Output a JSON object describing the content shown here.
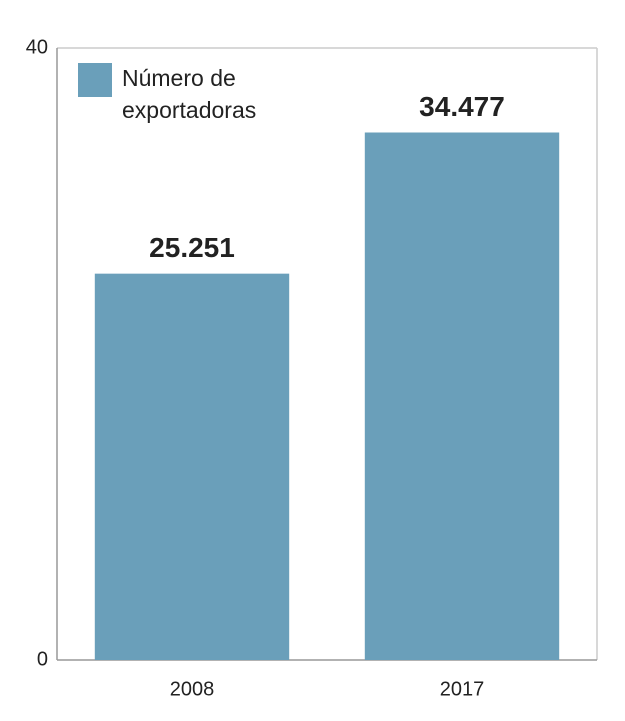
{
  "chart_data": {
    "type": "bar",
    "categories": [
      "2008",
      "2017"
    ],
    "series": [
      {
        "name": "Número de exportadoras",
        "color": "#6a9fba",
        "values": [
          25.251,
          34.477
        ]
      }
    ],
    "ylim": [
      0,
      40
    ],
    "yticks": [
      0,
      40
    ]
  }
}
